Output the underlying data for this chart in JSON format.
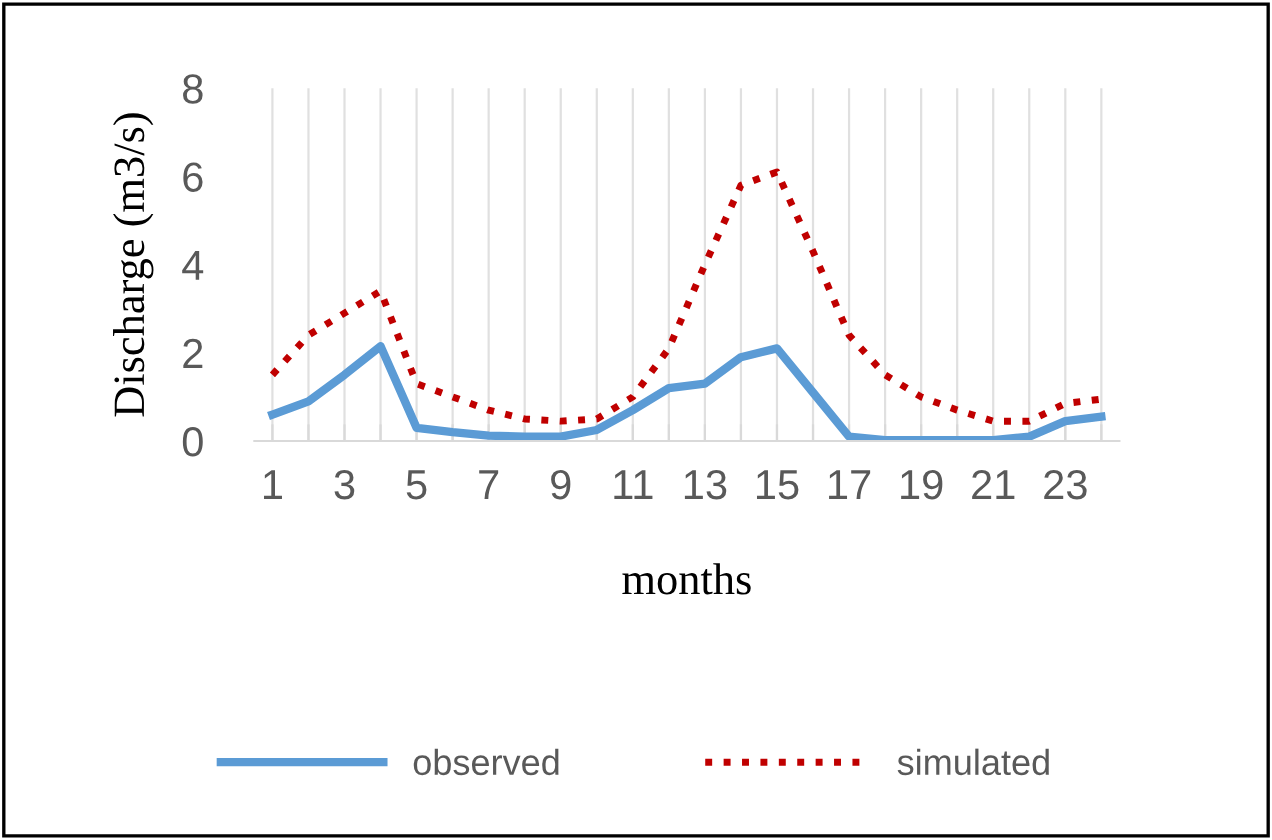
{
  "chart_data": {
    "type": "line",
    "xlabel": "months",
    "ylabel": "Discharge (m3/s)",
    "categories": [
      "1",
      null,
      "3",
      null,
      "5",
      null,
      "7",
      null,
      "9",
      null,
      "11",
      null,
      "13",
      null,
      "15",
      null,
      "17",
      null,
      "19",
      null,
      "21",
      null,
      "23",
      null
    ],
    "series": [
      {
        "name": "observed",
        "color": "#5b9bd5",
        "line_style": "solid",
        "values": [
          0.6,
          0.9,
          1.5,
          2.15,
          0.3,
          0.2,
          0.12,
          0.1,
          0.1,
          0.25,
          0.7,
          1.2,
          1.3,
          1.9,
          2.1,
          1.1,
          0.1,
          0.02,
          0.02,
          0.02,
          0.02,
          0.1,
          0.45,
          0.55
        ]
      },
      {
        "name": "simulated",
        "color": "#c00000",
        "line_style": "dotted",
        "values": [
          1.5,
          2.4,
          2.9,
          3.4,
          1.3,
          1.0,
          0.7,
          0.5,
          0.45,
          0.5,
          1.0,
          2.1,
          4.0,
          5.8,
          6.1,
          4.3,
          2.4,
          1.5,
          1.0,
          0.7,
          0.45,
          0.45,
          0.85,
          0.95
        ]
      }
    ],
    "ylim": [
      0,
      8
    ],
    "yticks": [
      0,
      2,
      4,
      6,
      8
    ],
    "grid": "x",
    "legend": "bottom",
    "marker": "none"
  }
}
